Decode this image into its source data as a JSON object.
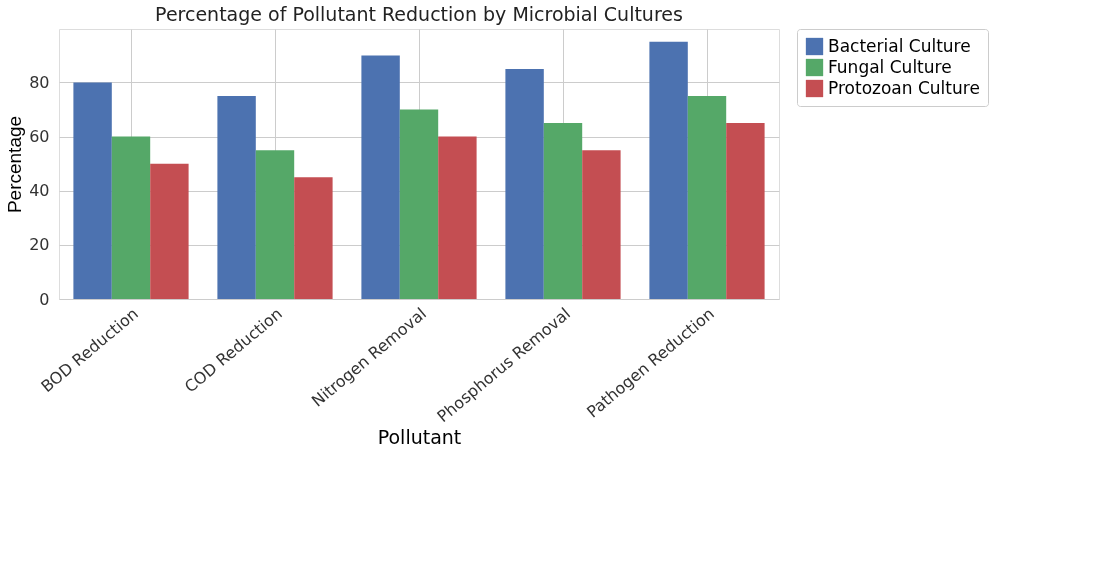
{
  "chart_data": {
    "type": "bar",
    "title": "Percentage of Pollutant Reduction by Microbial Cultures",
    "xlabel": "Pollutant",
    "ylabel": "Percentage",
    "categories": [
      "BOD Reduction",
      "COD Reduction",
      "Nitrogen Removal",
      "Phosphorus Removal",
      "Pathogen Reduction"
    ],
    "series": [
      {
        "name": "Bacterial Culture",
        "color": "#4c72b0",
        "values": [
          80,
          75,
          90,
          85,
          95
        ]
      },
      {
        "name": "Fungal Culture",
        "color": "#55a868",
        "values": [
          60,
          55,
          70,
          65,
          75
        ]
      },
      {
        "name": "Protozoan Culture",
        "color": "#c44e52",
        "values": [
          50,
          45,
          60,
          55,
          65
        ]
      }
    ],
    "ylim": [
      0,
      99.75
    ],
    "yticks": [
      0,
      20,
      40,
      60,
      80
    ],
    "grid": true,
    "legend": "right"
  }
}
